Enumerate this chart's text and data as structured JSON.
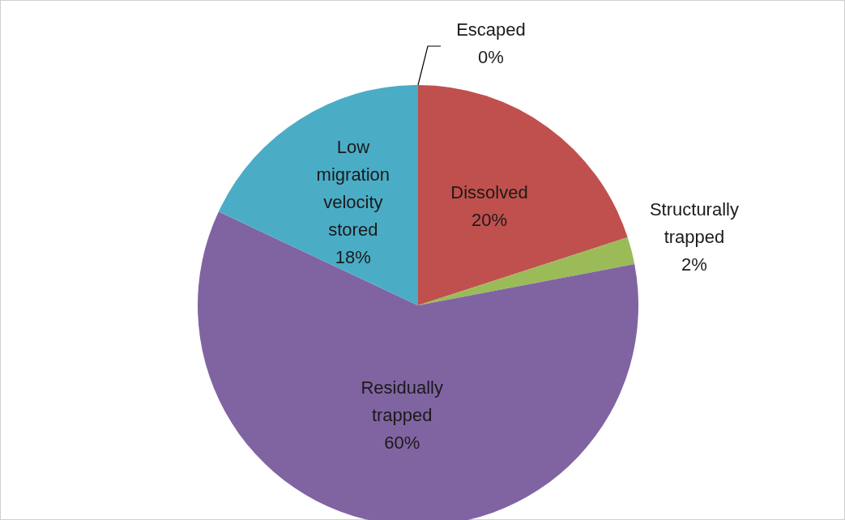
{
  "chart_data": {
    "type": "pie",
    "categories": [
      "Escaped",
      "Dissolved",
      "Structurally trapped",
      "Residually trapped",
      "Low migration velocity stored"
    ],
    "values": [
      0,
      20,
      2,
      60,
      18
    ],
    "colors": [
      "#4f81bd",
      "#c0504d",
      "#9bbb59",
      "#8064a2",
      "#4bacc6"
    ],
    "value_labels": [
      "0%",
      "20%",
      "2%",
      "60%",
      "18%"
    ],
    "legend": false
  }
}
